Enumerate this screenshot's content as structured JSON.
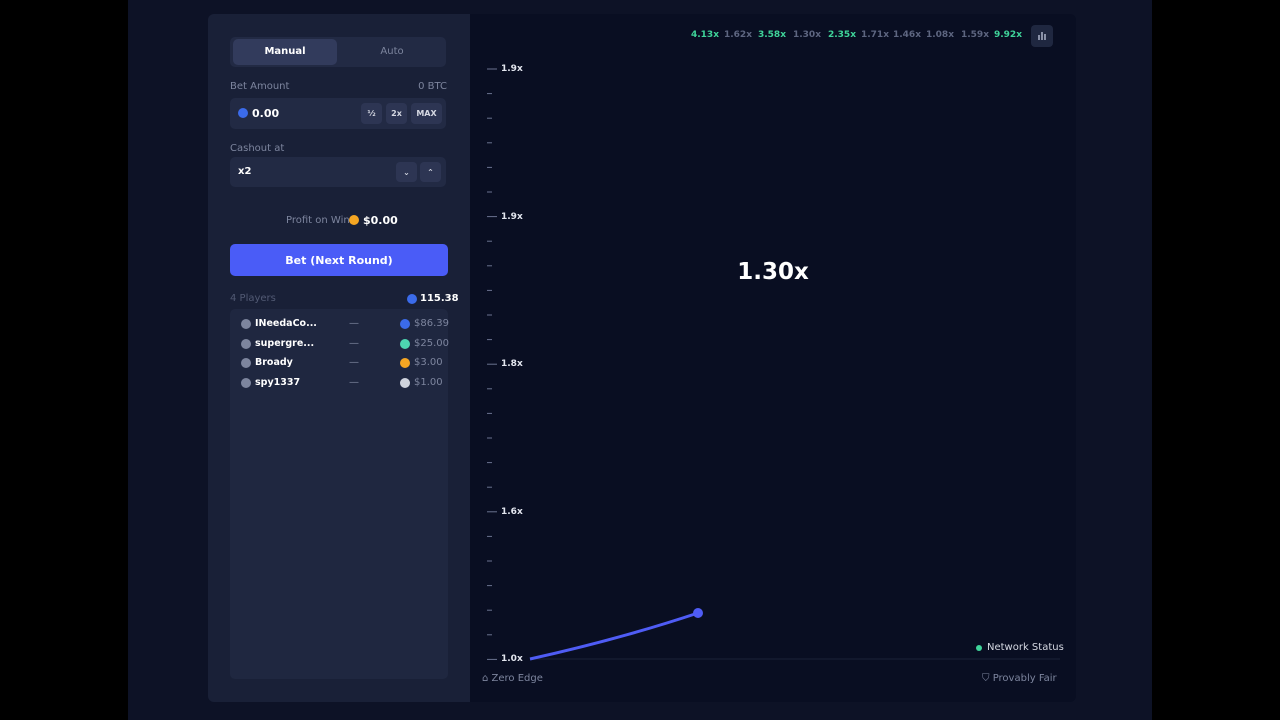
{
  "tabs": [
    "Manual",
    "Auto"
  ],
  "bet_amount": {
    "label": "Bet Amount",
    "balance": "0 BTC",
    "value": "0.00",
    "buttons": [
      "½",
      "2x",
      "MAX"
    ]
  },
  "cashout": {
    "label": "Cashout at",
    "value": "x2"
  },
  "profit": {
    "label": "Profit on Win",
    "value": "$0.00"
  },
  "bet_button": "Bet (Next Round)",
  "players": {
    "count": "4 Players",
    "total": "115.38",
    "rows": [
      {
        "name": "INeedaCo...",
        "status": "—",
        "amount": "$86.39",
        "coin": "#3b6bea"
      },
      {
        "name": "supergre...",
        "status": "—",
        "amount": "$25.00",
        "coin": "#4dd6b0"
      },
      {
        "name": "Broady",
        "status": "—",
        "amount": "$3.00",
        "coin": "#f5a623"
      },
      {
        "name": "spy1337",
        "status": "—",
        "amount": "$1.00",
        "coin": "#cfd3dc"
      }
    ]
  },
  "history": [
    {
      "label": "4.13x",
      "highlight": true
    },
    {
      "label": "1.62x",
      "highlight": false
    },
    {
      "label": "3.58x",
      "highlight": true
    },
    {
      "label": "1.30x",
      "highlight": false
    },
    {
      "label": "2.35x",
      "highlight": true
    },
    {
      "label": "1.71x",
      "highlight": false
    },
    {
      "label": "1.46x",
      "highlight": false
    },
    {
      "label": "1.08x",
      "highlight": false
    },
    {
      "label": "1.59x",
      "highlight": false
    },
    {
      "label": "9.92x",
      "highlight": true
    }
  ],
  "graph": {
    "y_labels": [
      "1.9x",
      "1.9x",
      "1.8x",
      "1.6x",
      "1.0x"
    ],
    "multiplier": "1.30x"
  },
  "footer": {
    "left": "Zero Edge",
    "status": "Network Status",
    "right": "Provably Fair"
  }
}
